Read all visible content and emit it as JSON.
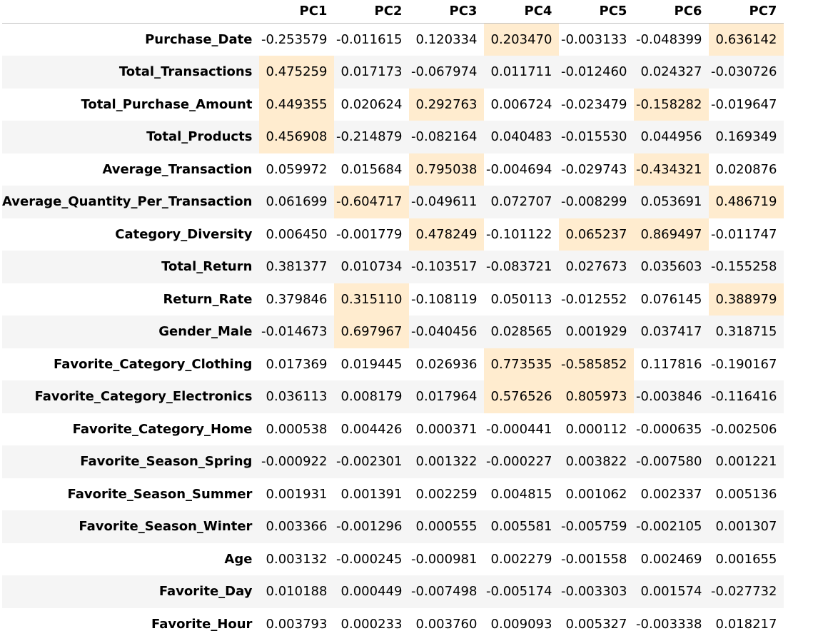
{
  "table": {
    "columns": [
      "PC1",
      "PC2",
      "PC3",
      "PC4",
      "PC5",
      "PC6",
      "PC7"
    ],
    "highlight_color": "#ffeccf",
    "rows": [
      {
        "label": "Purchase_Date",
        "values": [
          "-0.253579",
          "-0.011615",
          "0.120334",
          "0.203470",
          "-0.003133",
          "-0.048399",
          "0.636142"
        ],
        "highlight": [
          3,
          6
        ]
      },
      {
        "label": "Total_Transactions",
        "values": [
          "0.475259",
          "0.017173",
          "-0.067974",
          "0.011711",
          "-0.012460",
          "0.024327",
          "-0.030726"
        ],
        "highlight": [
          0
        ]
      },
      {
        "label": "Total_Purchase_Amount",
        "values": [
          "0.449355",
          "0.020624",
          "0.292763",
          "0.006724",
          "-0.023479",
          "-0.158282",
          "-0.019647"
        ],
        "highlight": [
          0,
          2,
          5
        ]
      },
      {
        "label": "Total_Products",
        "values": [
          "0.456908",
          "-0.214879",
          "-0.082164",
          "0.040483",
          "-0.015530",
          "0.044956",
          "0.169349"
        ],
        "highlight": [
          0
        ]
      },
      {
        "label": "Average_Transaction",
        "values": [
          "0.059972",
          "0.015684",
          "0.795038",
          "-0.004694",
          "-0.029743",
          "-0.434321",
          "0.020876"
        ],
        "highlight": [
          2,
          5
        ]
      },
      {
        "label": "Average_Quantity_Per_Transaction",
        "values": [
          "0.061699",
          "-0.604717",
          "-0.049611",
          "0.072707",
          "-0.008299",
          "0.053691",
          "0.486719"
        ],
        "highlight": [
          1,
          6
        ]
      },
      {
        "label": "Category_Diversity",
        "values": [
          "0.006450",
          "-0.001779",
          "0.478249",
          "-0.101122",
          "0.065237",
          "0.869497",
          "-0.011747"
        ],
        "highlight": [
          2,
          4,
          5
        ]
      },
      {
        "label": "Total_Return",
        "values": [
          "0.381377",
          "0.010734",
          "-0.103517",
          "-0.083721",
          "0.027673",
          "0.035603",
          "-0.155258"
        ],
        "highlight": []
      },
      {
        "label": "Return_Rate",
        "values": [
          "0.379846",
          "0.315110",
          "-0.108119",
          "0.050113",
          "-0.012552",
          "0.076145",
          "0.388979"
        ],
        "highlight": [
          1,
          6
        ]
      },
      {
        "label": "Gender_Male",
        "values": [
          "-0.014673",
          "0.697967",
          "-0.040456",
          "0.028565",
          "0.001929",
          "0.037417",
          "0.318715"
        ],
        "highlight": [
          1
        ]
      },
      {
        "label": "Favorite_Category_Clothing",
        "values": [
          "0.017369",
          "0.019445",
          "0.026936",
          "0.773535",
          "-0.585852",
          "0.117816",
          "-0.190167"
        ],
        "highlight": [
          3,
          4
        ]
      },
      {
        "label": "Favorite_Category_Electronics",
        "values": [
          "0.036113",
          "0.008179",
          "0.017964",
          "0.576526",
          "0.805973",
          "-0.003846",
          "-0.116416"
        ],
        "highlight": [
          3,
          4
        ]
      },
      {
        "label": "Favorite_Category_Home",
        "values": [
          "0.000538",
          "0.004426",
          "0.000371",
          "-0.000441",
          "0.000112",
          "-0.000635",
          "-0.002506"
        ],
        "highlight": []
      },
      {
        "label": "Favorite_Season_Spring",
        "values": [
          "-0.000922",
          "-0.002301",
          "0.001322",
          "-0.000227",
          "0.003822",
          "-0.007580",
          "0.001221"
        ],
        "highlight": []
      },
      {
        "label": "Favorite_Season_Summer",
        "values": [
          "0.001931",
          "0.001391",
          "0.002259",
          "0.004815",
          "0.001062",
          "0.002337",
          "0.005136"
        ],
        "highlight": []
      },
      {
        "label": "Favorite_Season_Winter",
        "values": [
          "0.003366",
          "-0.001296",
          "0.000555",
          "0.005581",
          "-0.005759",
          "-0.002105",
          "0.001307"
        ],
        "highlight": []
      },
      {
        "label": "Age",
        "values": [
          "0.003132",
          "-0.000245",
          "-0.000981",
          "0.002279",
          "-0.001558",
          "0.002469",
          "0.001655"
        ],
        "highlight": []
      },
      {
        "label": "Favorite_Day",
        "values": [
          "0.010188",
          "0.000449",
          "-0.007498",
          "-0.005174",
          "-0.003303",
          "0.001574",
          "-0.027732"
        ],
        "highlight": []
      },
      {
        "label": "Favorite_Hour",
        "values": [
          "0.003793",
          "0.000233",
          "0.003760",
          "0.009093",
          "0.005327",
          "-0.003338",
          "0.018217"
        ],
        "highlight": []
      }
    ]
  }
}
